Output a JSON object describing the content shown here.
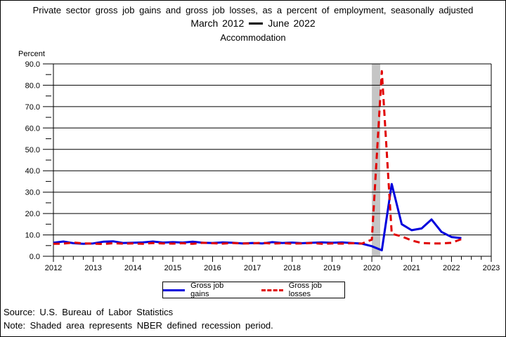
{
  "titles": {
    "line1": "Private sector gross job gains and gross job losses, as a percent of employment, seasonally adjusted",
    "period_from": "March 2012",
    "period_to": "June 2022",
    "industry": "Accommodation"
  },
  "axis": {
    "y_unit_label": "Percent",
    "y_min": 0,
    "y_max": 90,
    "y_major_step": 10,
    "y_minor_step": 5,
    "y_tick_labels": [
      "0.0",
      "10.0",
      "20.0",
      "30.0",
      "40.0",
      "50.0",
      "60.0",
      "70.0",
      "80.0",
      "90.0"
    ],
    "x_tick_labels": [
      "2012",
      "2013",
      "2014",
      "2015",
      "2016",
      "2017",
      "2018",
      "2019",
      "2020",
      "2021",
      "2022",
      "2023"
    ],
    "x_minor_ticks_per_year": 4
  },
  "chart_data": {
    "type": "line",
    "title": "Private sector gross job gains and gross job losses, as a percent of employment, seasonally adjusted",
    "subtitle": "March 2012 — June 2022",
    "industry": "Accommodation",
    "ylabel": "Percent",
    "ylim": [
      0,
      90
    ],
    "grid": "horizontal-major",
    "legend_position": "bottom-center",
    "categories": [
      "Mar 2012",
      "Jun 2012",
      "Sep 2012",
      "Dec 2012",
      "Mar 2013",
      "Jun 2013",
      "Sep 2013",
      "Dec 2013",
      "Mar 2014",
      "Jun 2014",
      "Sep 2014",
      "Dec 2014",
      "Mar 2015",
      "Jun 2015",
      "Sep 2015",
      "Dec 2015",
      "Mar 2016",
      "Jun 2016",
      "Sep 2016",
      "Dec 2016",
      "Mar 2017",
      "Jun 2017",
      "Sep 2017",
      "Dec 2017",
      "Mar 2018",
      "Jun 2018",
      "Sep 2018",
      "Dec 2018",
      "Mar 2019",
      "Jun 2019",
      "Sep 2019",
      "Dec 2019",
      "Mar 2020",
      "Jun 2020",
      "Sep 2020",
      "Dec 2020",
      "Mar 2021",
      "Jun 2021",
      "Sep 2021",
      "Dec 2021",
      "Mar 2022",
      "Jun 2022"
    ],
    "series": [
      {
        "name": "Gross job gains",
        "style": "solid",
        "color": "#0000dd",
        "values": [
          6.3,
          6.9,
          6.1,
          5.8,
          6.0,
          6.8,
          7.0,
          6.2,
          6.3,
          6.5,
          6.9,
          6.4,
          6.6,
          6.4,
          6.8,
          6.3,
          6.2,
          6.5,
          6.3,
          6.0,
          6.2,
          6.0,
          6.6,
          6.2,
          6.4,
          6.1,
          6.3,
          6.5,
          6.3,
          6.5,
          6.2,
          5.9,
          4.7,
          2.8,
          33.8,
          15.0,
          12.2,
          13.0,
          17.2,
          11.4,
          9.0,
          8.5
        ]
      },
      {
        "name": "Gross job losses",
        "style": "dashed",
        "color": "#e00000",
        "values": [
          5.8,
          5.9,
          6.4,
          6.0,
          5.9,
          5.7,
          6.1,
          5.9,
          6.0,
          5.8,
          6.2,
          6.0,
          5.9,
          6.1,
          5.8,
          6.3,
          6.1,
          5.9,
          6.2,
          6.0,
          6.0,
          6.3,
          5.9,
          6.1,
          5.9,
          6.0,
          6.2,
          5.8,
          6.0,
          5.9,
          6.1,
          5.9,
          7.8,
          86.6,
          10.5,
          9.3,
          7.4,
          6.2,
          6.0,
          6.0,
          6.3,
          8.0
        ]
      }
    ],
    "recession_shading": {
      "from_year": 2020.0,
      "to_year": 2020.21,
      "color": "#c5c5c5"
    }
  },
  "footer": {
    "source": "Source: U.S. Bureau of Labor Statistics",
    "note": "Note: Shaded area represents NBER defined recession period."
  }
}
